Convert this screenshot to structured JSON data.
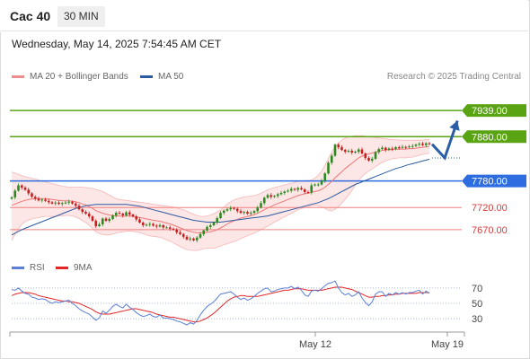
{
  "header": {
    "title": "Cac 40",
    "timeframe": "30 MIN"
  },
  "datetime": "Wednesday, May 14, 2025 7:54:45 AM CET",
  "legend": {
    "main": [
      {
        "name": "MA 20 + Bollinger Bands",
        "color": "#f28b8b"
      },
      {
        "name": "MA 50",
        "color": "#2d5aa0"
      }
    ],
    "rsi": [
      {
        "name": "RSI",
        "color": "#5b7fd6"
      },
      {
        "name": "9MA",
        "color": "#e32626"
      }
    ]
  },
  "credit": "Research © 2025 Trading Central",
  "colors": {
    "up": "#2a8a1f",
    "down": "#c81e1e",
    "pivot": "#2e6de0",
    "support": "#f08080",
    "resistance": "#5aa312",
    "forecast": "#2a5fa8"
  },
  "chart_data": [
    {
      "type": "candlestick",
      "ylim": [
        7615,
        7990
      ],
      "x_ticks": [
        "May 12",
        "May 19"
      ],
      "levels": [
        {
          "value": 7939.0,
          "label": "7939.00",
          "kind": "resistance"
        },
        {
          "value": 7880.0,
          "label": "7880.00",
          "kind": "resistance"
        },
        {
          "value": 7780.0,
          "label": "7780.00",
          "kind": "pivot"
        },
        {
          "value": 7720.0,
          "label": "7720.00",
          "kind": "support"
        },
        {
          "value": 7670.0,
          "label": "7670.00",
          "kind": "support"
        }
      ],
      "close": [
        7743,
        7758,
        7770,
        7765,
        7760,
        7752,
        7744,
        7740,
        7736,
        7738,
        7735,
        7732,
        7729,
        7731,
        7728,
        7730,
        7731,
        7733,
        7729,
        7724,
        7716,
        7710,
        7706,
        7700,
        7690,
        7678,
        7682,
        7695,
        7690,
        7694,
        7702,
        7708,
        7706,
        7702,
        7709,
        7704,
        7700,
        7693,
        7686,
        7680,
        7681,
        7683,
        7679,
        7677,
        7680,
        7675,
        7675,
        7672,
        7670,
        7664,
        7660,
        7654,
        7648,
        7650,
        7646,
        7652,
        7660,
        7668,
        7676,
        7680,
        7686,
        7696,
        7708,
        7713,
        7716,
        7719,
        7717,
        7712,
        7708,
        7710,
        7706,
        7708,
        7712,
        7720,
        7730,
        7742,
        7748,
        7744,
        7746,
        7750,
        7753,
        7756,
        7758,
        7762,
        7760,
        7764,
        7761,
        7755,
        7754,
        7770,
        7772,
        7772,
        7780,
        7797,
        7821,
        7837,
        7862,
        7856,
        7850,
        7846,
        7848,
        7844,
        7846,
        7851,
        7842,
        7832,
        7826,
        7830,
        7845,
        7852,
        7855,
        7850,
        7853,
        7852,
        7856,
        7855,
        7857,
        7856,
        7858,
        7859,
        7862,
        7864,
        7861,
        7865,
        7863
      ],
      "ma20": [
        7725,
        7728,
        7731,
        7734,
        7736,
        7738,
        7739,
        7740,
        7740,
        7740,
        7740,
        7739,
        7738,
        7737,
        7736,
        7735,
        7735,
        7735,
        7734,
        7733,
        7731,
        7728,
        7726,
        7722,
        7718,
        7713,
        7710,
        7707,
        7705,
        7703,
        7702,
        7701,
        7701,
        7700,
        7701,
        7701,
        7700,
        7699,
        7697,
        7696,
        7694,
        7693,
        7691,
        7690,
        7689,
        7687,
        7685,
        7683,
        7680,
        7677,
        7674,
        7671,
        7668,
        7666,
        7664,
        7663,
        7663,
        7663,
        7664,
        7665,
        7667,
        7670,
        7674,
        7678,
        7683,
        7687,
        7690,
        7693,
        7696,
        7698,
        7700,
        7702,
        7704,
        7707,
        7711,
        7715,
        7719,
        7722,
        7726,
        7729,
        7732,
        7735,
        7738,
        7741,
        7744,
        7747,
        7749,
        7751,
        7752,
        7754,
        7756,
        7758,
        7761,
        7766,
        7772,
        7779,
        7787,
        7794,
        7801,
        7808,
        7814,
        7820,
        7826,
        7832,
        7836,
        7839,
        7841,
        7843,
        7845,
        7847,
        7849,
        7850,
        7851,
        7851,
        7852,
        7852,
        7852,
        7852,
        7853,
        7853,
        7854,
        7855,
        7856,
        7857,
        7858
      ],
      "bb_upper": [
        7800,
        7798,
        7795,
        7792,
        7790,
        7788,
        7786,
        7784,
        7782,
        7780,
        7778,
        7776,
        7774,
        7772,
        7770,
        7768,
        7767,
        7766,
        7766,
        7766,
        7766,
        7766,
        7765,
        7764,
        7763,
        7761,
        7759,
        7756,
        7752,
        7748,
        7744,
        7740,
        7738,
        7737,
        7736,
        7735,
        7734,
        7733,
        7732,
        7731,
        7730,
        7729,
        7727,
        7726,
        7725,
        7724,
        7723,
        7722,
        7721,
        7719,
        7717,
        7715,
        7712,
        7708,
        7705,
        7702,
        7700,
        7700,
        7701,
        7703,
        7706,
        7710,
        7715,
        7721,
        7728,
        7733,
        7737,
        7740,
        7742,
        7744,
        7745,
        7746,
        7747,
        7749,
        7752,
        7756,
        7760,
        7763,
        7765,
        7767,
        7769,
        7771,
        7773,
        7775,
        7777,
        7779,
        7780,
        7781,
        7781,
        7782,
        7786,
        7793,
        7802,
        7815,
        7830,
        7845,
        7858,
        7866,
        7872,
        7877,
        7880,
        7881,
        7882,
        7882,
        7882,
        7881,
        7880,
        7879,
        7878,
        7877,
        7876,
        7875,
        7874,
        7873,
        7873,
        7872,
        7872,
        7872,
        7872,
        7872,
        7872,
        7872,
        7872,
        7873,
        7873
      ],
      "bb_lower": [
        7645,
        7660,
        7672,
        7682,
        7688,
        7692,
        7694,
        7696,
        7697,
        7699,
        7700,
        7700,
        7700,
        7700,
        7701,
        7701,
        7702,
        7702,
        7701,
        7699,
        7695,
        7690,
        7686,
        7680,
        7673,
        7665,
        7661,
        7659,
        7658,
        7658,
        7660,
        7662,
        7664,
        7665,
        7666,
        7667,
        7666,
        7665,
        7663,
        7661,
        7658,
        7656,
        7655,
        7654,
        7653,
        7650,
        7647,
        7644,
        7640,
        7636,
        7632,
        7628,
        7625,
        7624,
        7623,
        7623,
        7625,
        7627,
        7628,
        7628,
        7628,
        7630,
        7633,
        7636,
        7638,
        7641,
        7643,
        7646,
        7650,
        7653,
        7656,
        7659,
        7662,
        7666,
        7670,
        7674,
        7678,
        7682,
        7687,
        7691,
        7695,
        7699,
        7703,
        7707,
        7711,
        7715,
        7718,
        7720,
        7722,
        7724,
        7725,
        7724,
        7722,
        7718,
        7714,
        7712,
        7716,
        7722,
        7730,
        7739,
        7748,
        7759,
        7770,
        7782,
        7790,
        7797,
        7802,
        7807,
        7812,
        7817,
        7822,
        7825,
        7828,
        7830,
        7831,
        7832,
        7832,
        7832,
        7833,
        7834,
        7836,
        7838,
        7840,
        7841,
        7843
      ],
      "ma50": [
        7658,
        7662,
        7666,
        7670,
        7673,
        7676,
        7679,
        7682,
        7685,
        7688,
        7691,
        7694,
        7697,
        7700,
        7703,
        7706,
        7709,
        7712,
        7715,
        7718,
        7720,
        7722,
        7724,
        7725,
        7726,
        7727,
        7727,
        7727,
        7727,
        7727,
        7727,
        7727,
        7727,
        7727,
        7727,
        7726,
        7725,
        7724,
        7723,
        7721,
        7719,
        7717,
        7715,
        7713,
        7711,
        7709,
        7707,
        7705,
        7703,
        7701,
        7699,
        7697,
        7695,
        7693,
        7691,
        7690,
        7689,
        7688,
        7687,
        7687,
        7687,
        7687,
        7687,
        7688,
        7689,
        7690,
        7691,
        7692,
        7693,
        7694,
        7695,
        7696,
        7697,
        7698,
        7699,
        7700,
        7701,
        7703,
        7705,
        7707,
        7709,
        7711,
        7713,
        7715,
        7717,
        7719,
        7721,
        7723,
        7725,
        7727,
        7729,
        7731,
        7734,
        7737,
        7740,
        7744,
        7748,
        7752,
        7756,
        7760,
        7764,
        7768,
        7772,
        7775,
        7778,
        7781,
        7784,
        7787,
        7790,
        7793,
        7796,
        7799,
        7802,
        7805,
        7808,
        7810,
        7812,
        7815,
        7817,
        7819,
        7821,
        7823,
        7825,
        7827,
        7829
      ],
      "forecast_path": [
        [
          7863,
          0
        ],
        [
          7832,
          3
        ],
        [
          7916,
          6
        ]
      ]
    },
    {
      "type": "line",
      "ylim": [
        15,
        85
      ],
      "y_ticks": [
        70,
        50,
        30
      ],
      "series": [
        {
          "name": "RSI",
          "values": [
            68,
            67,
            70,
            66,
            63,
            62,
            58,
            57,
            55,
            56,
            55,
            52,
            50,
            52,
            51,
            52,
            53,
            54,
            50,
            47,
            43,
            40,
            38,
            36,
            32,
            28,
            31,
            40,
            37,
            41,
            46,
            49,
            46,
            44,
            49,
            45,
            42,
            38,
            35,
            33,
            34,
            36,
            33,
            32,
            35,
            31,
            31,
            30,
            29,
            27,
            26,
            24,
            22,
            25,
            23,
            28,
            35,
            41,
            46,
            49,
            52,
            57,
            62,
            63,
            64,
            65,
            62,
            58,
            55,
            57,
            54,
            56,
            59,
            63,
            66,
            69,
            70,
            65,
            66,
            68,
            69,
            70,
            70,
            72,
            69,
            71,
            67,
            61,
            59,
            66,
            67,
            66,
            69,
            73,
            76,
            77,
            79,
            70,
            64,
            61,
            63,
            59,
            61,
            65,
            57,
            51,
            47,
            52,
            62,
            65,
            65,
            59,
            63,
            61,
            64,
            62,
            64,
            62,
            64,
            64,
            66,
            67,
            62,
            66,
            63
          ]
        },
        {
          "name": "9MA",
          "values": [
            60,
            62,
            63,
            64,
            64,
            64,
            63,
            62,
            60,
            59,
            58,
            57,
            56,
            55,
            54,
            53,
            53,
            52,
            52,
            51,
            50,
            48,
            46,
            44,
            42,
            39,
            37,
            36,
            36,
            36,
            37,
            38,
            39,
            40,
            41,
            42,
            43,
            43,
            42,
            41,
            40,
            39,
            38,
            36,
            35,
            34,
            33,
            32,
            32,
            31,
            30,
            29,
            28,
            27,
            26,
            26,
            27,
            29,
            31,
            34,
            37,
            41,
            45,
            49,
            53,
            56,
            58,
            59,
            60,
            60,
            59,
            59,
            59,
            59,
            60,
            61,
            62,
            63,
            64,
            65,
            66,
            67,
            67,
            68,
            69,
            69,
            69,
            68,
            67,
            67,
            67,
            67,
            67,
            68,
            69,
            70,
            71,
            71,
            71,
            70,
            69,
            68,
            66,
            64,
            62,
            60,
            58,
            58,
            59,
            59,
            60,
            60,
            61,
            61,
            62,
            62,
            63,
            63,
            63,
            63,
            63,
            64,
            64,
            64,
            64
          ]
        }
      ]
    }
  ]
}
